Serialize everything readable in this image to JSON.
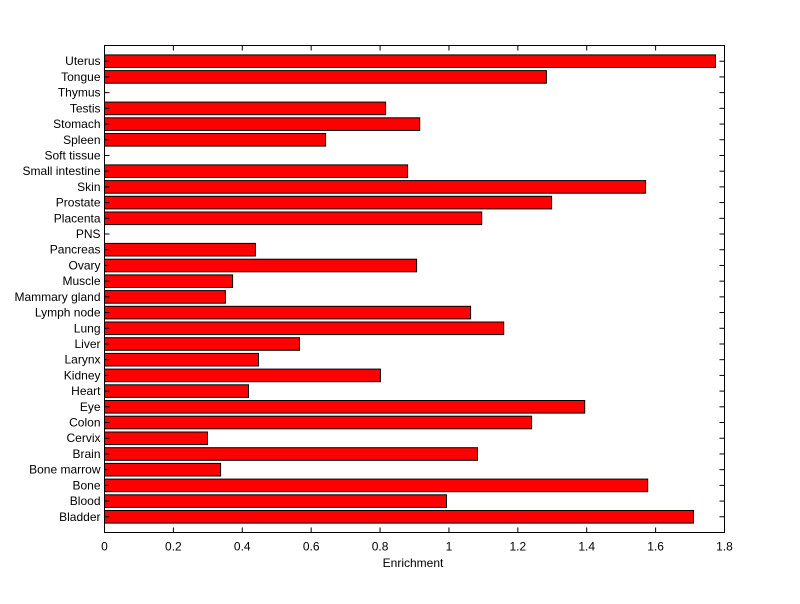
{
  "chart_data": {
    "type": "bar",
    "orientation": "horizontal",
    "title": "",
    "xlabel": "Enrichment",
    "ylabel": "",
    "xlim": [
      0,
      1.8
    ],
    "xticks": [
      "0",
      "0.2",
      "0.4",
      "0.6",
      "0.8",
      "1",
      "1.2",
      "1.4",
      "1.6",
      "1.8"
    ],
    "grid": false,
    "bar_color": "#ff0000",
    "categories": [
      "Bladder",
      "Blood",
      "Bone",
      "Bone marrow",
      "Brain",
      "Cervix",
      "Colon",
      "Eye",
      "Heart",
      "Kidney",
      "Larynx",
      "Liver",
      "Lung",
      "Lymph node",
      "Mammary gland",
      "Muscle",
      "Ovary",
      "Pancreas",
      "PNS",
      "Placenta",
      "Prostate",
      "Skin",
      "Small intestine",
      "Soft tissue",
      "Spleen",
      "Stomach",
      "Testis",
      "Thymus",
      "Tongue",
      "Uterus"
    ],
    "values": [
      1.71,
      0.993,
      1.577,
      0.337,
      1.083,
      0.299,
      1.24,
      1.394,
      0.418,
      0.801,
      0.447,
      0.566,
      1.159,
      1.063,
      0.351,
      0.372,
      0.906,
      0.438,
      0,
      1.095,
      1.298,
      1.571,
      0.88,
      0,
      0.642,
      0.915,
      0.816,
      0,
      1.283,
      1.774
    ]
  }
}
